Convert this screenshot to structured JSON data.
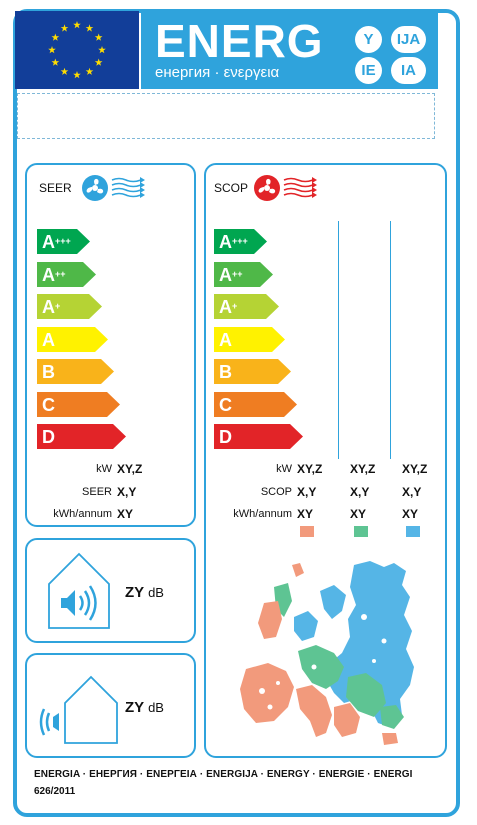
{
  "header": {
    "word": "ENERG",
    "subtitle": "енергия · ενεργεια",
    "suffixes": [
      "Y",
      "IJA",
      "IE",
      "IA"
    ]
  },
  "colors": {
    "frame": "#2fa3dc",
    "eu_blue": "#123e99",
    "star": "#ffdd00",
    "swatch_1": "#f29a7c",
    "swatch_2": "#5ec493",
    "swatch_3": "#55b5e6",
    "classes": [
      "#00a650",
      "#4fb848",
      "#b5d334",
      "#fff200",
      "#f9b31a",
      "#ef7d22",
      "#e22428"
    ]
  },
  "seer": {
    "title": "SEER",
    "icon": "fan-cooling-icon",
    "classes": [
      "A",
      "A",
      "A",
      "A",
      "B",
      "C",
      "D"
    ],
    "class_sups": [
      "+++",
      "++",
      "+",
      "",
      "",
      "",
      ""
    ],
    "rows": [
      {
        "label": "kW",
        "value": "XY,Z"
      },
      {
        "label": "SEER",
        "value": "X,Y"
      },
      {
        "label": "kWh/annum",
        "value": "XY"
      }
    ]
  },
  "scop": {
    "title": "SCOP",
    "icon": "fan-heating-icon",
    "classes": [
      "A",
      "A",
      "A",
      "A",
      "B",
      "C",
      "D"
    ],
    "class_sups": [
      "+++",
      "++",
      "+",
      "",
      "",
      "",
      ""
    ],
    "row_labels": [
      "kW",
      "SCOP",
      "kWh/annum"
    ],
    "columns": [
      {
        "kw": "XY,Z",
        "scop": "X,Y",
        "kwh": "XY"
      },
      {
        "kw": "XY,Z",
        "scop": "X,Y",
        "kwh": "XY"
      },
      {
        "kw": "XY,Z",
        "scop": "X,Y",
        "kwh": "XY"
      }
    ]
  },
  "noise": {
    "indoor": {
      "value": "ZY",
      "unit": "dB",
      "icon": "indoor-noise-icon"
    },
    "outdoor": {
      "value": "ZY",
      "unit": "dB",
      "icon": "outdoor-noise-icon"
    }
  },
  "map": {
    "icon": "europe-climate-zones-map"
  },
  "footer": {
    "languages": "ENERGIA · ЕНЕРГИЯ · ΕΝΕΡΓΕΙΑ · ENERGIJA · ENERGY · ENERGIE · ENERGI",
    "regulation": "626/2011"
  }
}
